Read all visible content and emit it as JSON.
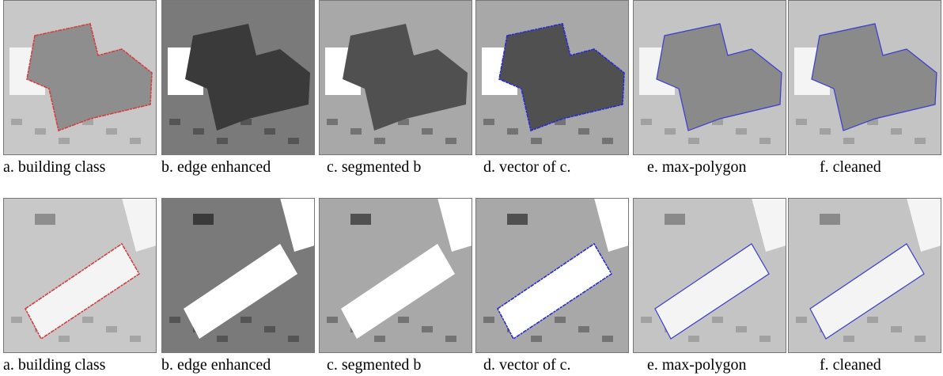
{
  "rows": [
    {
      "panels": [
        {
          "caption": "a. building class"
        },
        {
          "caption": "b. edge enhanced"
        },
        {
          "caption": "c. segmented b"
        },
        {
          "caption": "d. vector of c."
        },
        {
          "caption": "e. max-polygon"
        },
        {
          "caption": "f. cleaned"
        }
      ]
    },
    {
      "panels": [
        {
          "caption": "a. building class"
        },
        {
          "caption": "b. edge enhanced"
        },
        {
          "caption": "c. segmented b"
        },
        {
          "caption": "d. vector of c."
        },
        {
          "caption": "e. max-polygon"
        },
        {
          "caption": "f. cleaned"
        }
      ]
    }
  ]
}
